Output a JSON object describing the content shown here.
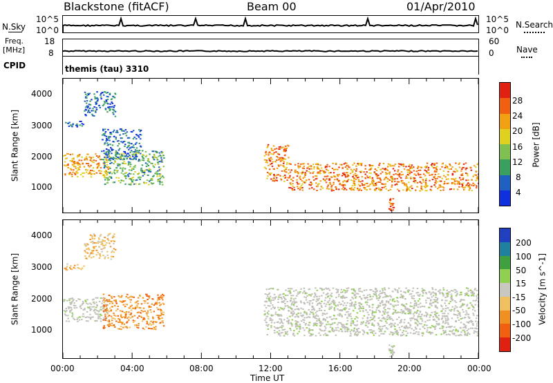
{
  "header": {
    "station": "Blackstone (fitACF)",
    "beam": "Beam 00",
    "date": "01/Apr/2010"
  },
  "noise_panel": {
    "left_label": "N.Sky",
    "right_label": "N.Search",
    "left_ticks": [
      "10^5",
      "10^0"
    ],
    "right_ticks": [
      "10^5",
      "10^0"
    ]
  },
  "freq_panel": {
    "left_label_1": "Freq.",
    "left_label_2": "[MHz]",
    "right_label": "Nave",
    "left_ticks": [
      "18",
      "8"
    ],
    "right_ticks": [
      "60",
      "0"
    ]
  },
  "cpid": {
    "label": "CPID",
    "value": "themis (tau) 3310"
  },
  "colors": {
    "power_scale": [
      "#1030e0",
      "#2060c0",
      "#3aa060",
      "#80c050",
      "#e0d020",
      "#f0a010",
      "#f06010",
      "#e02010"
    ],
    "velocity_scale": [
      "#2040c0",
      "#2080a0",
      "#40a040",
      "#90d050",
      "#c8c8c0",
      "#f0c060",
      "#f09020",
      "#f06010",
      "#e02010"
    ],
    "ground_scatter": "#c0c0b8"
  },
  "chart_data": [
    {
      "type": "heatmap",
      "title": "",
      "ylabel": "Slant Range [km]",
      "yticks": [
        "4000",
        "3000",
        "2000",
        "1000"
      ],
      "ylim": [
        180,
        4500
      ],
      "xlim": [
        "00:00",
        "24:00"
      ],
      "colorbar_label": "Power [dB]",
      "colorbar_ticks": [
        "28",
        "24",
        "20",
        "16",
        "12",
        "8",
        "4"
      ],
      "colorbar_range": [
        0,
        32
      ],
      "features": [
        {
          "start_h": 0.0,
          "end_h": 1.2,
          "range_km": [
            2950,
            3150
          ],
          "power_db": 6
        },
        {
          "start_h": 1.2,
          "end_h": 3.0,
          "range_km": [
            3300,
            4100
          ],
          "power_db": 6
        },
        {
          "start_h": 0.0,
          "end_h": 2.6,
          "range_km": [
            1350,
            2100
          ],
          "power_db": 22
        },
        {
          "start_h": 2.2,
          "end_h": 4.5,
          "range_km": [
            1900,
            2900
          ],
          "power_db": 6
        },
        {
          "start_h": 2.3,
          "end_h": 5.8,
          "range_km": [
            1100,
            2200
          ],
          "power_db": 12
        },
        {
          "start_h": 11.6,
          "end_h": 13.0,
          "range_km": [
            1200,
            2400
          ],
          "power_db": 24
        },
        {
          "start_h": 13.0,
          "end_h": 24.0,
          "range_km": [
            900,
            1800
          ],
          "power_db": 24
        },
        {
          "start_h": 18.8,
          "end_h": 19.1,
          "range_km": [
            250,
            650
          ],
          "power_db": 26
        }
      ]
    },
    {
      "type": "heatmap",
      "title": "",
      "xlabel": "Time UT",
      "ylabel": "Slant Range [km]",
      "yticks": [
        "4000",
        "3000",
        "2000",
        "1000"
      ],
      "ylim": [
        180,
        4500
      ],
      "xticks": [
        "00:00",
        "04:00",
        "08:00",
        "12:00",
        "16:00",
        "20:00",
        "00:00"
      ],
      "colorbar_label": "Velocity [m s^-1]",
      "colorbar_ticks": [
        "200",
        "100",
        "50",
        "15",
        "-15",
        "-50",
        "-100",
        "-200"
      ],
      "colorbar_range": [
        -300,
        300
      ],
      "features": [
        {
          "start_h": 0.0,
          "end_h": 1.2,
          "range_km": [
            2950,
            3150
          ],
          "velocity": -50
        },
        {
          "start_h": 1.2,
          "end_h": 3.0,
          "range_km": [
            3300,
            4100
          ],
          "velocity": -50
        },
        {
          "start_h": 0.0,
          "end_h": 2.6,
          "range_km": [
            1350,
            2100
          ],
          "velocity": 0
        },
        {
          "start_h": 2.3,
          "end_h": 5.8,
          "range_km": [
            1100,
            2200
          ],
          "velocity": -100
        },
        {
          "start_h": 11.6,
          "end_h": 24.0,
          "range_km": [
            900,
            2400
          ],
          "velocity": 0
        },
        {
          "start_h": 18.8,
          "end_h": 19.1,
          "range_km": [
            250,
            650
          ],
          "velocity": 0
        }
      ]
    }
  ]
}
